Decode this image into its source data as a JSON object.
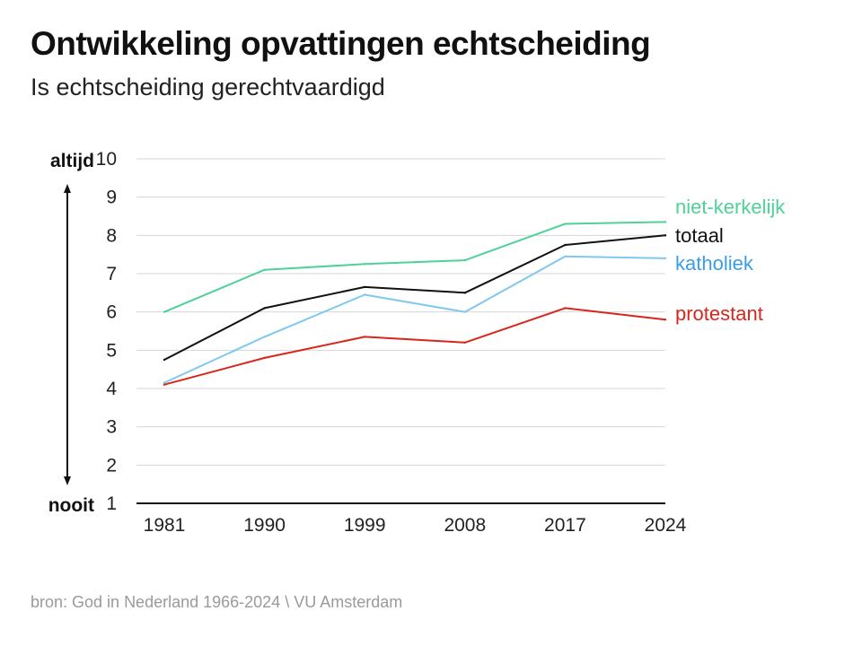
{
  "title": "Ontwikkeling opvattingen echtscheiding",
  "subtitle": "Is echtscheiding gerechtvaardigd",
  "source": "bron: God in Nederland 1966-2024 \\ VU Amsterdam",
  "axis_end_labels": {
    "top": "altijd",
    "bottom": "nooit"
  },
  "chart_data": {
    "type": "line",
    "title": "Ontwikkeling opvattingen echtscheiding",
    "subtitle": "Is echtscheiding gerechtvaardigd",
    "xlabel": "",
    "ylabel": "",
    "categories": [
      "1981",
      "1990",
      "1999",
      "2008",
      "2017",
      "2024"
    ],
    "ylim": [
      1,
      10
    ],
    "yticks": [
      1,
      2,
      3,
      4,
      5,
      6,
      7,
      8,
      9,
      10
    ],
    "grid": true,
    "series": [
      {
        "name": "niet-kerkelijk",
        "color": "#4fd19a",
        "values": [
          6.0,
          7.1,
          7.25,
          7.35,
          8.3,
          8.35
        ]
      },
      {
        "name": "totaal",
        "color": "#111111",
        "values": [
          4.75,
          6.1,
          6.65,
          6.5,
          7.75,
          8.0
        ]
      },
      {
        "name": "katholiek",
        "color": "#7fc8ef",
        "values": [
          4.15,
          5.35,
          6.45,
          6.0,
          7.45,
          7.4
        ]
      },
      {
        "name": "protestant",
        "color": "#d9261c",
        "values": [
          4.1,
          4.8,
          5.35,
          5.2,
          6.1,
          5.8
        ]
      }
    ],
    "label_colors": {
      "niet-kerkelijk": "#4fd19a",
      "totaal": "#111111",
      "katholiek": "#3a9ee6",
      "protestant": "#d9261c"
    }
  }
}
